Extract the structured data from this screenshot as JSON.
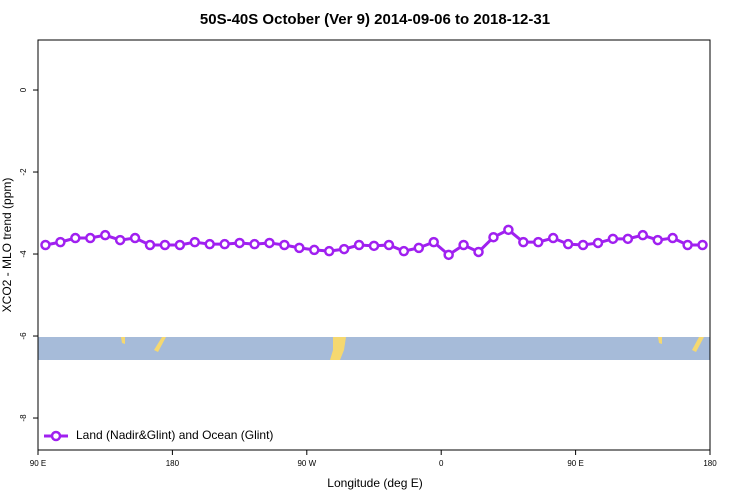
{
  "chart_data": {
    "type": "line",
    "title": "50S-40S October (Ver 9)   2014-09-06 to 2018-12-31",
    "x_label": "Longitude (deg E)",
    "y_label": "XCO2 - MLO trend (ppm)",
    "x": [
      95,
      105,
      115,
      125,
      135,
      145,
      155,
      165,
      175,
      185,
      195,
      205,
      215,
      225,
      235,
      245,
      255,
      265,
      275,
      285,
      295,
      305,
      315,
      325,
      335,
      345,
      355,
      365,
      375,
      385,
      395,
      405,
      415,
      425,
      435,
      445,
      455,
      465,
      475,
      485,
      495,
      505,
      515,
      525,
      535
    ],
    "series": [
      {
        "name": "Land (Nadir&Glint) and Ocean (Glint)",
        "color": "#a020f0",
        "values": [
          -3.78,
          -3.71,
          -3.61,
          -3.61,
          -3.54,
          -3.66,
          -3.61,
          -3.78,
          -3.78,
          -3.78,
          -3.71,
          -3.76,
          -3.76,
          -3.73,
          -3.76,
          -3.73,
          -3.78,
          -3.85,
          -3.9,
          -3.93,
          -3.88,
          -3.78,
          -3.8,
          -3.78,
          -3.93,
          -3.85,
          -3.71,
          -4.02,
          -3.78,
          -3.95,
          -3.59,
          -3.41,
          -3.71,
          -3.71,
          -3.61,
          -3.76,
          -3.78,
          -3.73,
          -3.63,
          -3.63,
          -3.54,
          -3.66,
          -3.61,
          -3.78,
          -3.78
        ]
      }
    ],
    "xlim": [
      90,
      540
    ],
    "xticks": [
      {
        "value": 90,
        "label": "90 E"
      },
      180,
      {
        "value": 270,
        "label": "90 W"
      },
      {
        "value": 360,
        "label": "0"
      },
      {
        "value": 450,
        "label": "90 E"
      },
      {
        "value": 540,
        "label": "180"
      }
    ],
    "ylim": [
      -8.78,
      1.22
    ],
    "yticks": [
      0,
      -2,
      -4,
      -6,
      -8
    ],
    "legend": "bottomleft"
  }
}
